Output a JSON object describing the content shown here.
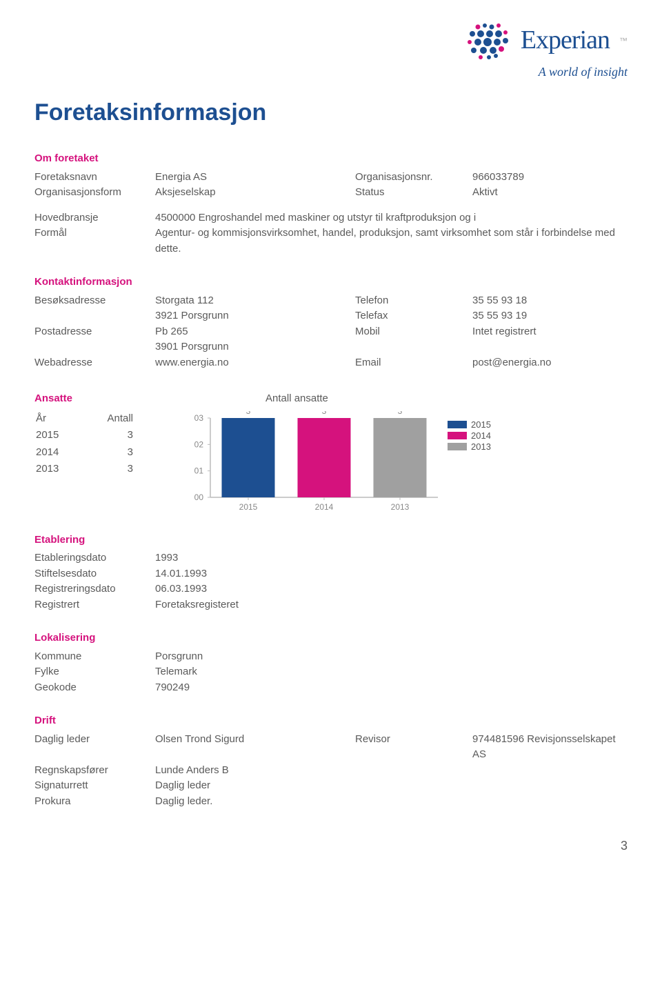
{
  "logo": {
    "word": "Experian",
    "tagline": "A world of insight",
    "brand_color": "#1d4f91",
    "dot_color_blue": "#1d4f91",
    "dot_color_pink": "#d5127d"
  },
  "page_title": "Foretaksinformasjon",
  "om_foretaket": {
    "header": "Om foretaket",
    "rows": [
      {
        "l": "Foretaksnavn",
        "v1": "Energia AS",
        "l2": "Organisasjonsnr.",
        "v2": "966033789"
      },
      {
        "l": "Organisasjonsform",
        "v1": "Aksjeselskap",
        "l2": "Status",
        "v2": "Aktivt"
      }
    ]
  },
  "hovedbransje": {
    "label": "Hovedbransje",
    "value": "4500000 Engroshandel med maskiner og utstyr til kraftproduksjon og i"
  },
  "formal": {
    "label": "Formål",
    "value": "Agentur- og kommisjonsvirksomhet, handel, produksjon, samt virksomhet som står i forbindelse med dette."
  },
  "kontakt": {
    "header": "Kontaktinformasjon",
    "rows": [
      {
        "l": "Besøksadresse",
        "v1": "Storgata 112",
        "l2": "Telefon",
        "v2": "35 55 93 18"
      },
      {
        "l": "",
        "v1": "3921  Porsgrunn",
        "l2": "Telefax",
        "v2": "35 55 93 19"
      },
      {
        "l": "Postadresse",
        "v1": "Pb 265",
        "l2": "Mobil",
        "v2": "Intet registrert"
      },
      {
        "l": "",
        "v1": "3901  Porsgrunn",
        "l2": "",
        "v2": ""
      },
      {
        "l": "Webadresse",
        "v1": "www.energia.no",
        "l2": "Email",
        "v2": "post@energia.no"
      }
    ]
  },
  "ansatte": {
    "header": "Ansatte",
    "year_head": "År",
    "count_head": "Antall",
    "rows": [
      {
        "year": "2015",
        "count": "3"
      },
      {
        "year": "2014",
        "count": "3"
      },
      {
        "year": "2013",
        "count": "3"
      }
    ]
  },
  "ansatte_chart": {
    "title": "Antall ansatte",
    "type": "bar",
    "categories": [
      "2015",
      "2014",
      "2013"
    ],
    "values": [
      3,
      3,
      3
    ],
    "bar_colors": [
      "#1d4f91",
      "#d5127d",
      "#a0a0a0"
    ],
    "legend_labels": [
      "2015",
      "2014",
      "2013"
    ],
    "yticks": [
      "00",
      "01",
      "02",
      "03"
    ],
    "ylim": [
      0,
      3
    ],
    "bar_width": 0.7,
    "background_color": "#ffffff",
    "axis_color": "#bbbbbb",
    "label_color": "#888888",
    "label_fontsize": 12,
    "value_label_color": "#888888"
  },
  "etablering": {
    "header": "Etablering",
    "rows": [
      {
        "l": "Etableringsdato",
        "v": "1993"
      },
      {
        "l": "Stiftelsesdato",
        "v": "14.01.1993"
      },
      {
        "l": "Registreringsdato",
        "v": "06.03.1993"
      },
      {
        "l": "Registrert",
        "v": "Foretaksregisteret"
      }
    ]
  },
  "lokalisering": {
    "header": "Lokalisering",
    "rows": [
      {
        "l": "Kommune",
        "v": "Porsgrunn"
      },
      {
        "l": "Fylke",
        "v": "Telemark"
      },
      {
        "l": "Geokode",
        "v": "790249"
      }
    ]
  },
  "drift": {
    "header": "Drift",
    "rows": [
      {
        "l": "Daglig leder",
        "v1": "Olsen Trond Sigurd",
        "l2": "Revisor",
        "v2": "974481596 Revisjonsselskapet AS"
      },
      {
        "l": "Regnskapsfører",
        "v1": "Lunde Anders B",
        "l2": "",
        "v2": ""
      },
      {
        "l": "Signaturrett",
        "v1": "Daglig leder",
        "l2": "",
        "v2": ""
      },
      {
        "l": "Prokura",
        "v1": "Daglig leder.",
        "l2": "",
        "v2": ""
      }
    ]
  },
  "page_number": "3"
}
